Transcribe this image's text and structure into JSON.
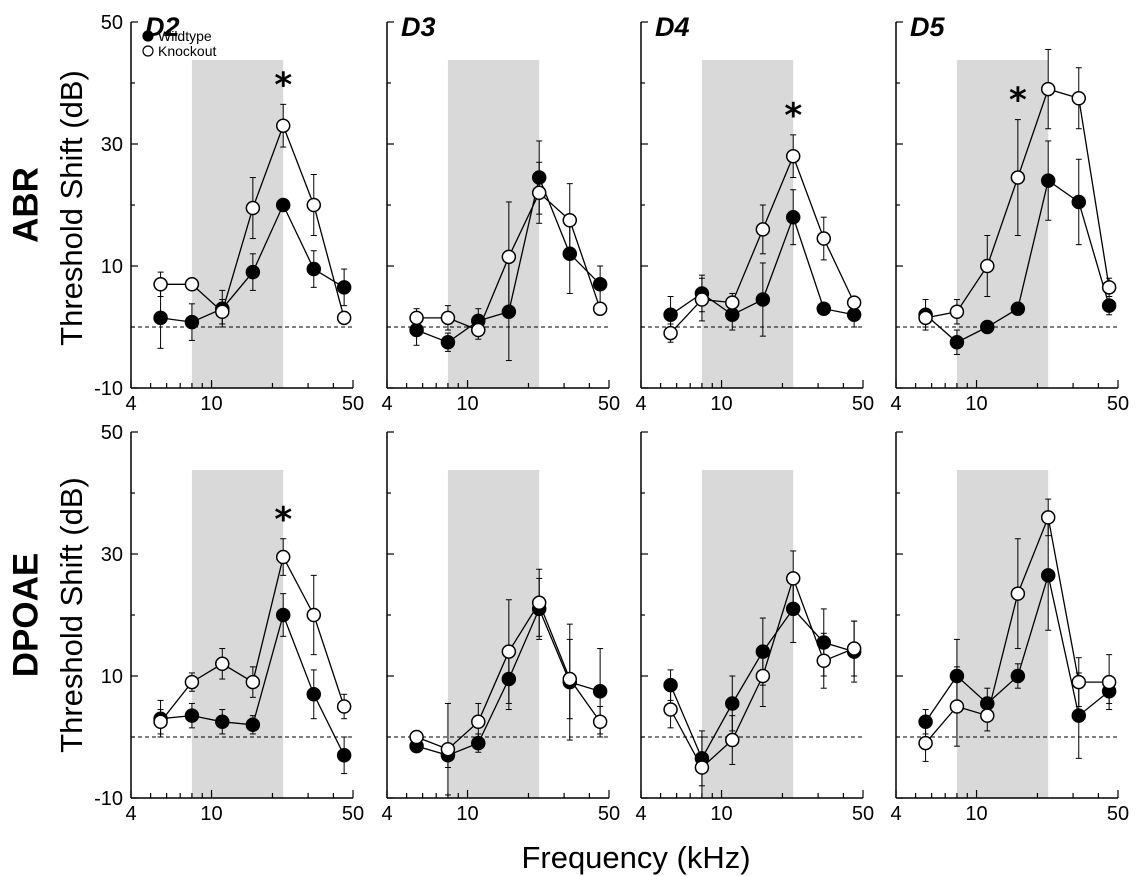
{
  "figure": {
    "xlabel": "Frequency (kHz)",
    "ylabel": "Threshold Shift (dB)",
    "rows": [
      "ABR",
      "DPOAE"
    ],
    "columns": [
      "D2",
      "D3",
      "D4",
      "D5"
    ],
    "legend": [
      {
        "name": "Wildtype",
        "marker": "filled-circle"
      },
      {
        "name": "Knockout",
        "marker": "open-circle"
      }
    ],
    "colors": {
      "shade": "#d9d9d9",
      "filled_marker": "#000000",
      "open_marker": "#ffffff",
      "line": "#000000"
    }
  },
  "chart_data": [
    {
      "type": "line",
      "row": "ABR",
      "title": "D2",
      "xlabel": "Frequency (kHz)",
      "ylabel": "Threshold Shift (dB)",
      "xscale": "log",
      "xlim": [
        4,
        50
      ],
      "xticks": [
        4,
        10,
        50
      ],
      "ylim": [
        -10,
        50
      ],
      "yticks": [
        -10,
        10,
        30,
        50
      ],
      "reference_line": 0,
      "shaded_band": [
        8,
        22.6
      ],
      "x": [
        5.6,
        8,
        11.3,
        16,
        22.6,
        32,
        45.2
      ],
      "series": [
        {
          "name": "Wildtype",
          "values": [
            1.5,
            0.8,
            3.0,
            9.0,
            20.0,
            9.5,
            6.5
          ],
          "errors": [
            5.0,
            3.0,
            3.0,
            3.0,
            0,
            3.0,
            3.0
          ]
        },
        {
          "name": "Knockout",
          "values": [
            7.0,
            7.0,
            2.5,
            19.5,
            33.0,
            20.0,
            1.5
          ],
          "errors": [
            2.0,
            1.0,
            2.0,
            5.0,
            3.5,
            5.0,
            1.0
          ]
        }
      ],
      "significance": [
        22.6
      ]
    },
    {
      "type": "line",
      "row": "ABR",
      "title": "D3",
      "xscale": "log",
      "xlim": [
        4,
        50
      ],
      "xticks": [
        4,
        10,
        50
      ],
      "ylim": [
        -10,
        50
      ],
      "reference_line": 0,
      "shaded_band": [
        8,
        22.6
      ],
      "x": [
        5.6,
        8,
        11.3,
        16,
        22.6,
        32,
        45.2
      ],
      "series": [
        {
          "name": "Wildtype",
          "values": [
            -0.5,
            -2.5,
            1.0,
            2.5,
            24.5,
            12.0,
            7.0
          ],
          "errors": [
            2.5,
            1.5,
            2.0,
            8.0,
            6.0,
            6.5,
            3.0
          ]
        },
        {
          "name": "Knockout",
          "values": [
            1.5,
            1.5,
            -0.5,
            11.5,
            22.0,
            17.5,
            3.0
          ],
          "errors": [
            1.5,
            2.0,
            1.5,
            9.0,
            5.0,
            6.0,
            1.0
          ]
        }
      ],
      "significance": []
    },
    {
      "type": "line",
      "row": "ABR",
      "title": "D4",
      "xscale": "log",
      "xlim": [
        4,
        50
      ],
      "xticks": [
        4,
        10,
        50
      ],
      "ylim": [
        -10,
        50
      ],
      "reference_line": 0,
      "shaded_band": [
        8,
        22.6
      ],
      "x": [
        5.6,
        8,
        11.3,
        16,
        22.6,
        32,
        45.2
      ],
      "series": [
        {
          "name": "Wildtype",
          "values": [
            2.0,
            5.5,
            2.0,
            4.5,
            18.0,
            3.0,
            2.0
          ],
          "errors": [
            3.0,
            3.0,
            2.5,
            6.0,
            4.5,
            1.0,
            2.0
          ]
        },
        {
          "name": "Knockout",
          "values": [
            -1.0,
            4.5,
            4.0,
            16.0,
            28.0,
            14.5,
            4.0
          ],
          "errors": [
            1.5,
            3.5,
            1.5,
            4.0,
            3.5,
            3.5,
            1.0
          ]
        }
      ],
      "significance": [
        22.6
      ]
    },
    {
      "type": "line",
      "row": "ABR",
      "title": "D5",
      "xscale": "log",
      "xlim": [
        4,
        50
      ],
      "xticks": [
        4,
        10,
        50
      ],
      "ylim": [
        -10,
        50
      ],
      "reference_line": 0,
      "shaded_band": [
        8,
        22.6
      ],
      "x": [
        5.6,
        8,
        11.3,
        16,
        22.6,
        32,
        45.2
      ],
      "series": [
        {
          "name": "Wildtype",
          "values": [
            2.0,
            -2.5,
            0.0,
            3.0,
            24.0,
            20.5,
            3.5
          ],
          "errors": [
            2.5,
            2.0,
            1.0,
            1.0,
            6.5,
            7.0,
            1.5
          ]
        },
        {
          "name": "Knockout",
          "values": [
            1.5,
            2.5,
            10.0,
            24.5,
            39.0,
            37.5,
            6.5
          ],
          "errors": [
            1.5,
            2.0,
            5.0,
            9.5,
            6.5,
            5.0,
            1.5
          ]
        }
      ],
      "significance": [
        16
      ]
    },
    {
      "type": "line",
      "row": "DPOAE",
      "title": "",
      "xscale": "log",
      "xlim": [
        4,
        50
      ],
      "xticks": [
        4,
        10,
        50
      ],
      "ylim": [
        -10,
        50
      ],
      "yticks": [
        -10,
        10,
        30,
        50
      ],
      "reference_line": 0,
      "shaded_band": [
        8,
        22.6
      ],
      "x": [
        5.6,
        8,
        11.3,
        16,
        22.6,
        32,
        45.2
      ],
      "series": [
        {
          "name": "Wildtype",
          "values": [
            3.0,
            3.5,
            2.5,
            2.0,
            20.0,
            7.0,
            -3.0
          ],
          "errors": [
            3.0,
            2.0,
            2.0,
            1.5,
            3.5,
            4.0,
            3.0
          ]
        },
        {
          "name": "Knockout",
          "values": [
            2.5,
            9.0,
            12.0,
            9.0,
            29.5,
            20.0,
            5.0
          ],
          "errors": [
            2.0,
            1.5,
            2.5,
            2.5,
            3.0,
            6.5,
            2.0
          ]
        }
      ],
      "significance": [
        22.6
      ]
    },
    {
      "type": "line",
      "row": "DPOAE",
      "title": "",
      "xscale": "log",
      "xlim": [
        4,
        50
      ],
      "xticks": [
        4,
        10,
        50
      ],
      "ylim": [
        -10,
        50
      ],
      "reference_line": 0,
      "shaded_band": [
        8,
        22.6
      ],
      "x": [
        5.6,
        8,
        11.3,
        16,
        22.6,
        32,
        45.2
      ],
      "series": [
        {
          "name": "Wildtype",
          "values": [
            -1.5,
            -3.0,
            -1.0,
            9.5,
            21.0,
            9.0,
            7.5
          ],
          "errors": [
            1.0,
            2.0,
            1.5,
            5.0,
            5.0,
            9.5,
            7.0
          ]
        },
        {
          "name": "Knockout",
          "values": [
            0.0,
            -2.0,
            2.5,
            14.0,
            22.0,
            9.5,
            2.5
          ],
          "errors": [
            1.0,
            7.5,
            3.0,
            8.5,
            5.5,
            6.5,
            2.5
          ]
        }
      ],
      "significance": []
    },
    {
      "type": "line",
      "row": "DPOAE",
      "title": "",
      "xscale": "log",
      "xlim": [
        4,
        50
      ],
      "xticks": [
        4,
        10,
        50
      ],
      "ylim": [
        -10,
        50
      ],
      "reference_line": 0,
      "shaded_band": [
        8,
        22.6
      ],
      "x": [
        5.6,
        8,
        11.3,
        16,
        22.6,
        32,
        45.2
      ],
      "series": [
        {
          "name": "Wildtype",
          "values": [
            8.5,
            -3.5,
            5.5,
            14.0,
            21.0,
            15.5,
            14.0
          ],
          "errors": [
            2.5,
            4.5,
            4.5,
            5.5,
            5.5,
            5.5,
            5.0
          ]
        },
        {
          "name": "Knockout",
          "values": [
            4.5,
            -5.0,
            -0.5,
            10.0,
            26.0,
            12.5,
            14.5
          ],
          "errors": [
            3.0,
            5.0,
            4.0,
            5.0,
            4.5,
            4.5,
            4.5
          ]
        }
      ],
      "significance": []
    },
    {
      "type": "line",
      "row": "DPOAE",
      "title": "",
      "xscale": "log",
      "xlim": [
        4,
        50
      ],
      "xticks": [
        4,
        10,
        50
      ],
      "ylim": [
        -10,
        50
      ],
      "reference_line": 0,
      "shaded_band": [
        8,
        22.6
      ],
      "x": [
        5.6,
        8,
        11.3,
        16,
        22.6,
        32,
        45.2
      ],
      "series": [
        {
          "name": "Wildtype",
          "values": [
            2.5,
            10.0,
            5.5,
            10.0,
            26.5,
            3.5,
            7.5
          ],
          "errors": [
            2.0,
            6.0,
            2.5,
            2.0,
            9.0,
            7.0,
            2.0
          ]
        },
        {
          "name": "Knockout",
          "values": [
            -1.0,
            5.0,
            3.5,
            23.5,
            36.0,
            9.0,
            9.0
          ],
          "errors": [
            3.0,
            6.5,
            2.5,
            9.0,
            3.0,
            4.0,
            4.5
          ]
        }
      ],
      "significance": []
    }
  ]
}
